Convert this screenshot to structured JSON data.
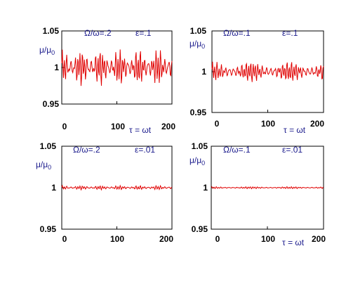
{
  "colors": {
    "series": "#e00000",
    "frame": "#000000",
    "label": "#1a1a8c"
  },
  "chart_data": [
    {
      "type": "line",
      "xlim": [
        0,
        200
      ],
      "ylim": [
        0.95,
        1.05
      ],
      "xticks": [
        "0",
        "100",
        "200"
      ],
      "yticks": [
        "0.95",
        "1",
        "1.05"
      ],
      "xlabel": "τ = ωt",
      "ylabel": "μ/μ",
      "ylabel_sub": "0",
      "annotations": [
        "Ω/ω=.2",
        "ε=.1"
      ],
      "series": [
        {
          "amplitude": 0.02,
          "frequency": 0.5,
          "modulation_frequency": 0.2
        }
      ]
    },
    {
      "type": "line",
      "xlim": [
        0,
        200
      ],
      "ylim": [
        0.95,
        1.05
      ],
      "xticks": [
        "0",
        "100",
        "200"
      ],
      "yticks": [
        "0.95",
        "1",
        "1.05"
      ],
      "xlabel": "τ = ωt",
      "ylabel": "μ/μ",
      "ylabel_sub": "0",
      "annotations": [
        "Ω/ω=.1",
        "ε=.1"
      ],
      "series": [
        {
          "amplitude": 0.01,
          "frequency": 0.5,
          "modulation_frequency": 0.1
        }
      ]
    },
    {
      "type": "line",
      "xlim": [
        0,
        200
      ],
      "ylim": [
        0.95,
        1.05
      ],
      "xticks": [
        "0",
        "100",
        "200"
      ],
      "yticks": [
        "0.95",
        "1",
        "1.05"
      ],
      "xlabel": "",
      "ylabel": "μ/μ",
      "ylabel_sub": "0",
      "annotations": [
        "Ω/ω=.2",
        "ε=.01"
      ],
      "series": [
        {
          "amplitude": 0.002,
          "frequency": 0.5,
          "modulation_frequency": 0.2
        }
      ]
    },
    {
      "type": "line",
      "xlim": [
        0,
        200
      ],
      "ylim": [
        0.95,
        1.05
      ],
      "xticks": [
        "0",
        "100",
        "200"
      ],
      "yticks": [
        "0.95",
        "1",
        "1.05"
      ],
      "xlabel": "τ = ωt",
      "ylabel": "μ/μ",
      "ylabel_sub": "0",
      "annotations": [
        "Ω/ω=.1",
        "ε=.01"
      ],
      "series": [
        {
          "amplitude": 0.001,
          "frequency": 0.5,
          "modulation_frequency": 0.1
        }
      ]
    }
  ]
}
